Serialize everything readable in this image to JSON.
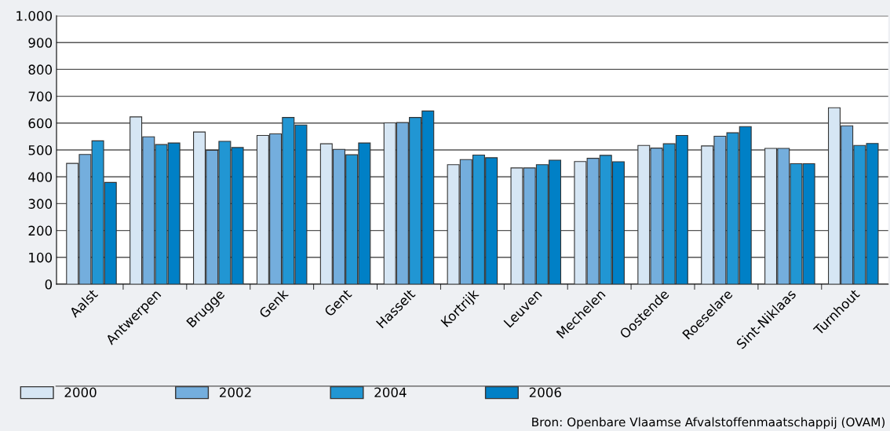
{
  "chart_data": {
    "type": "bar",
    "categories": [
      "Aalst",
      "Antwerpen",
      "Brugge",
      "Genk",
      "Gent",
      "Hasselt",
      "Kortrijk",
      "Leuven",
      "Mechelen",
      "Oostende",
      "Roeselare",
      "Sint-Niklaas",
      "Turnhout"
    ],
    "series": [
      {
        "name": "2000",
        "color": "#d6e6f4",
        "values": [
          450,
          623,
          567,
          554,
          523,
          601,
          445,
          433,
          457,
          517,
          515,
          506,
          657
        ]
      },
      {
        "name": "2002",
        "color": "#74aedd",
        "values": [
          483,
          549,
          499,
          560,
          502,
          602,
          464,
          433,
          469,
          507,
          551,
          506,
          590
        ]
      },
      {
        "name": "2004",
        "color": "#2196d3",
        "values": [
          534,
          520,
          532,
          621,
          482,
          621,
          481,
          445,
          480,
          523,
          564,
          449,
          517
        ]
      },
      {
        "name": "2006",
        "color": "#0080c6",
        "values": [
          379,
          526,
          509,
          593,
          526,
          645,
          471,
          462,
          456,
          554,
          587,
          449,
          524
        ]
      }
    ],
    "ylim": [
      0,
      1000
    ],
    "yticks": [
      0,
      100,
      200,
      300,
      400,
      500,
      600,
      700,
      800,
      900,
      {
        "value": 1000,
        "label": "1.000"
      }
    ],
    "grid": "y",
    "legend": "bottom",
    "annotations": [
      "Bron: Openbare Vlaamse Afvalstoffenmaatschappij (OVAM)"
    ]
  }
}
